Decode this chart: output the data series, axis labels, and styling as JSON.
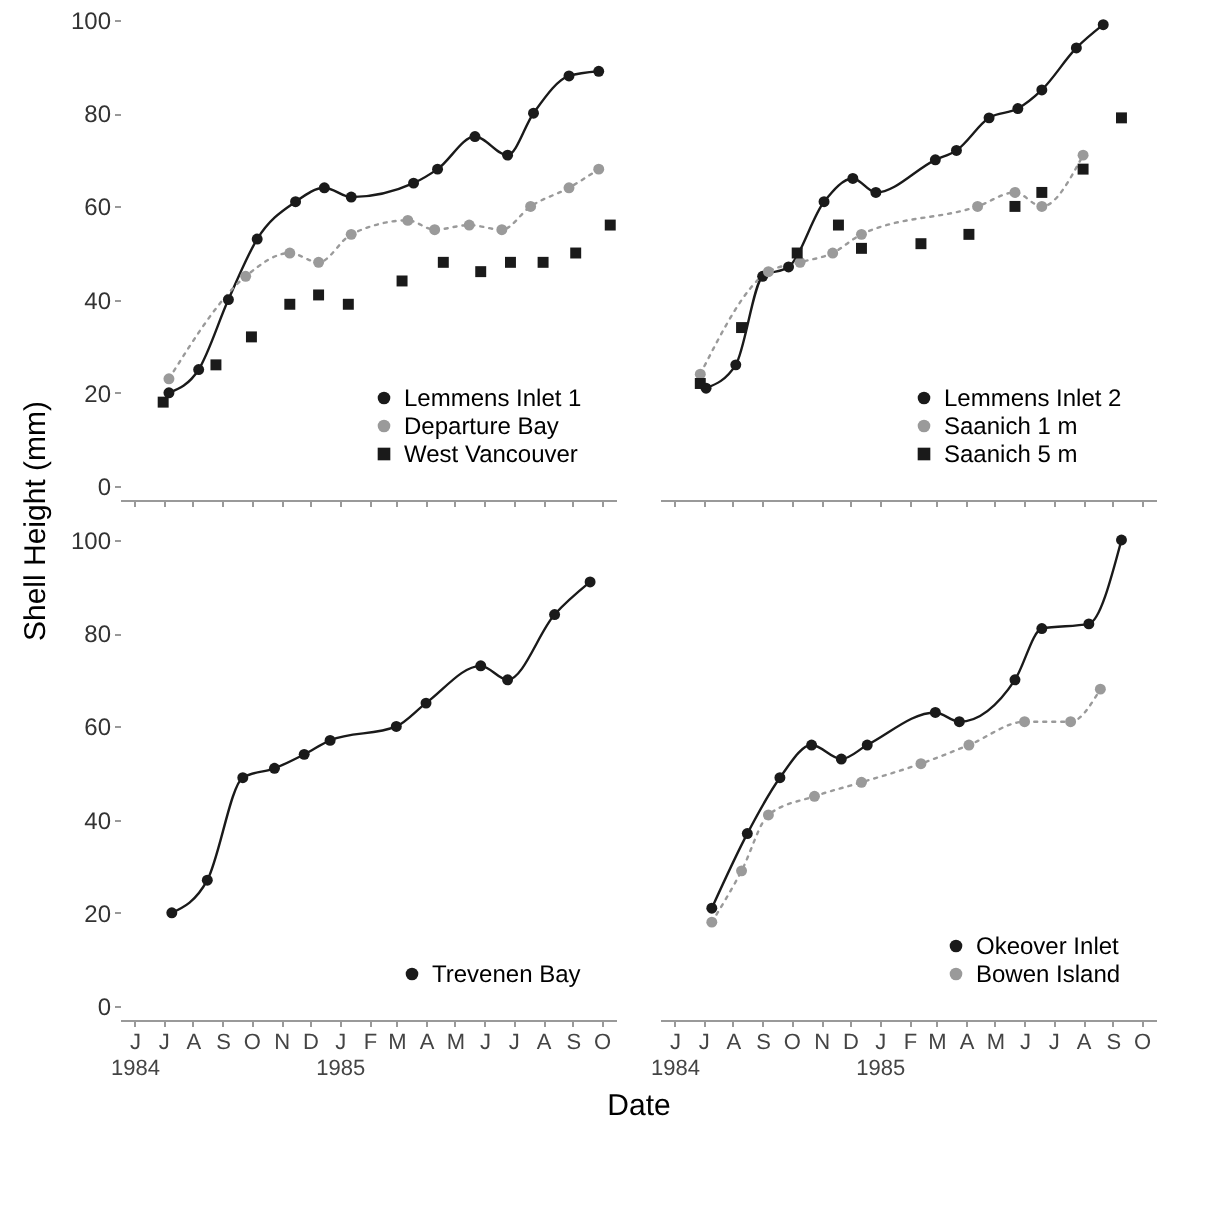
{
  "chart_data": [
    {
      "type": "line",
      "ylabel": "Shell Height (mm)",
      "xlim": [
        "1984-05-17",
        "1985-10-16"
      ],
      "ylim": [
        -3,
        100
      ],
      "xticks": [
        {
          "value": "1984-06-01",
          "label": null
        },
        {
          "value": "1984-07-01",
          "label": null
        },
        {
          "value": "1984-08-01",
          "label": null
        },
        {
          "value": "1984-09-01",
          "label": null
        },
        {
          "value": "1984-10-01",
          "label": null
        },
        {
          "value": "1984-11-01",
          "label": null
        },
        {
          "value": "1984-12-01",
          "label": null
        },
        {
          "value": "1985-01-01",
          "label": null
        },
        {
          "value": "1985-02-01",
          "label": null
        },
        {
          "value": "1985-03-01",
          "label": null
        },
        {
          "value": "1985-04-01",
          "label": null
        },
        {
          "value": "1985-05-01",
          "label": null
        },
        {
          "value": "1985-06-01",
          "label": null
        },
        {
          "value": "1985-07-01",
          "label": null
        },
        {
          "value": "1985-08-01",
          "label": null
        },
        {
          "value": "1985-09-01",
          "label": null
        },
        {
          "value": "1985-10-01",
          "label": null
        }
      ],
      "yticks": [
        0,
        20,
        40,
        60,
        80,
        100
      ],
      "tick_labels": "y",
      "legend": "bottom right",
      "grid": false,
      "series": [
        {
          "name": "Lemmens Inlet 1",
          "color": "#1a1a1a",
          "type": "line",
          "marker": "circle",
          "line_style": "solid",
          "x": [
            "1984-07-07",
            "1984-08-07",
            "1984-09-07",
            "1984-10-07",
            "1984-11-16",
            "1984-12-16",
            "1985-01-13",
            "1985-03-19",
            "1985-04-13",
            "1985-05-22",
            "1985-06-25",
            "1985-07-22",
            "1985-08-28",
            "1985-09-28"
          ],
          "values": [
            20,
            25,
            40,
            53,
            61,
            64,
            62,
            65,
            68,
            75,
            71,
            80,
            88,
            89
          ]
        },
        {
          "name": "Departure Bay",
          "color": "#9a9a9a",
          "type": "line",
          "marker": "circle",
          "line_style": "dotted",
          "x": [
            "1984-07-07",
            "1984-09-25",
            "1984-11-10",
            "1984-12-10",
            "1985-01-13",
            "1985-03-13",
            "1985-04-10",
            "1985-05-16",
            "1985-06-19",
            "1985-07-19",
            "1985-08-28",
            "1985-09-28"
          ],
          "values": [
            23,
            45,
            50,
            48,
            54,
            57,
            55,
            56,
            55,
            60,
            64,
            68
          ]
        },
        {
          "name": "West Vancouver",
          "color": "#1a1a1a",
          "type": "scatter",
          "marker": "square",
          "x": [
            "1984-07-01",
            "1984-08-25",
            "1984-10-01",
            "1984-11-10",
            "1984-12-10",
            "1985-01-10",
            "1985-03-07",
            "1985-04-19",
            "1985-05-28",
            "1985-06-28",
            "1985-08-01",
            "1985-09-04",
            "1985-10-10"
          ],
          "values": [
            18,
            26,
            32,
            39,
            41,
            39,
            44,
            48,
            46,
            48,
            48,
            50,
            56
          ]
        }
      ]
    },
    {
      "type": "line",
      "xlim": [
        "1984-05-17",
        "1985-10-16"
      ],
      "ylim": [
        -3,
        100
      ],
      "xticks": [
        {
          "value": "1984-06-01",
          "label": null
        },
        {
          "value": "1984-07-01",
          "label": null
        },
        {
          "value": "1984-08-01",
          "label": null
        },
        {
          "value": "1984-09-01",
          "label": null
        },
        {
          "value": "1984-10-01",
          "label": null
        },
        {
          "value": "1984-11-01",
          "label": null
        },
        {
          "value": "1984-12-01",
          "label": null
        },
        {
          "value": "1985-01-01",
          "label": null
        },
        {
          "value": "1985-02-01",
          "label": null
        },
        {
          "value": "1985-03-01",
          "label": null
        },
        {
          "value": "1985-04-01",
          "label": null
        },
        {
          "value": "1985-05-01",
          "label": null
        },
        {
          "value": "1985-06-01",
          "label": null
        },
        {
          "value": "1985-07-01",
          "label": null
        },
        {
          "value": "1985-08-01",
          "label": null
        },
        {
          "value": "1985-09-01",
          "label": null
        },
        {
          "value": "1985-10-01",
          "label": null
        }
      ],
      "yticks": [
        0,
        20,
        40,
        60,
        80,
        100
      ],
      "tick_labels": false,
      "legend": "bottom right",
      "grid": false,
      "series": [
        {
          "name": "Lemmens Inlet 2",
          "color": "#1a1a1a",
          "type": "line",
          "marker": "circle",
          "line_style": "solid",
          "x": [
            "1984-07-04",
            "1984-08-04",
            "1984-09-01",
            "1984-09-28",
            "1984-11-04",
            "1984-12-04",
            "1984-12-28",
            "1985-02-28",
            "1985-03-22",
            "1985-04-25",
            "1985-05-25",
            "1985-06-19",
            "1985-07-25",
            "1985-08-22"
          ],
          "values": [
            21,
            26,
            45,
            47,
            61,
            66,
            63,
            70,
            72,
            79,
            81,
            85,
            94,
            99
          ]
        },
        {
          "name": "Saanich 1 m",
          "color": "#9a9a9a",
          "type": "line",
          "marker": "circle",
          "line_style": "dotted",
          "x": [
            "1984-06-28",
            "1984-09-07",
            "1984-10-10",
            "1984-11-13",
            "1984-12-13",
            "1985-04-13",
            "1985-05-22",
            "1985-06-19",
            "1985-08-01"
          ],
          "values": [
            24,
            46,
            48,
            50,
            54,
            60,
            63,
            60,
            71
          ]
        },
        {
          "name": "Saanich 5 m",
          "color": "#1a1a1a",
          "type": "scatter",
          "marker": "square",
          "x": [
            "1984-06-28",
            "1984-08-10",
            "1984-10-07",
            "1984-11-19",
            "1984-12-13",
            "1985-02-13",
            "1985-04-04",
            "1985-05-22",
            "1985-06-19",
            "1985-08-01",
            "1985-09-10"
          ],
          "values": [
            22,
            34,
            50,
            56,
            51,
            52,
            54,
            60,
            63,
            68,
            79
          ]
        }
      ]
    },
    {
      "type": "line",
      "xlabel": "Date",
      "xlim": [
        "1984-05-17",
        "1985-10-16"
      ],
      "ylim": [
        -3,
        100
      ],
      "xticks": [
        {
          "value": "1984-06-01",
          "label": "J\n1984"
        },
        {
          "value": "1984-07-01",
          "label": "J"
        },
        {
          "value": "1984-08-01",
          "label": "A"
        },
        {
          "value": "1984-09-01",
          "label": "S"
        },
        {
          "value": "1984-10-01",
          "label": "O"
        },
        {
          "value": "1984-11-01",
          "label": "N"
        },
        {
          "value": "1984-12-01",
          "label": "D"
        },
        {
          "value": "1985-01-01",
          "label": "J\n1985"
        },
        {
          "value": "1985-02-01",
          "label": "F"
        },
        {
          "value": "1985-03-01",
          "label": "M"
        },
        {
          "value": "1985-04-01",
          "label": "A"
        },
        {
          "value": "1985-05-01",
          "label": "M"
        },
        {
          "value": "1985-06-01",
          "label": "J"
        },
        {
          "value": "1985-07-01",
          "label": "J"
        },
        {
          "value": "1985-08-01",
          "label": "A"
        },
        {
          "value": "1985-09-01",
          "label": "S"
        },
        {
          "value": "1985-10-01",
          "label": "O"
        }
      ],
      "yticks": [
        0,
        20,
        40,
        60,
        80,
        100
      ],
      "legend": "bottom right",
      "grid": false,
      "series": [
        {
          "name": "Trevenen Bay",
          "color": "#1a1a1a",
          "type": "line",
          "marker": "circle",
          "line_style": "solid",
          "x": [
            "1984-07-10",
            "1984-08-16",
            "1984-09-22",
            "1984-10-25",
            "1984-11-25",
            "1984-12-22",
            "1985-03-01",
            "1985-04-01",
            "1985-05-28",
            "1985-06-25",
            "1985-08-13",
            "1985-09-19"
          ],
          "values": [
            20,
            27,
            49,
            51,
            54,
            57,
            60,
            65,
            73,
            70,
            84,
            91
          ]
        }
      ]
    },
    {
      "type": "line",
      "xlim": [
        "1984-05-17",
        "1985-10-16"
      ],
      "ylim": [
        -3,
        100
      ],
      "xticks": [
        {
          "value": "1984-06-01",
          "label": "J\n1984"
        },
        {
          "value": "1984-07-01",
          "label": "J"
        },
        {
          "value": "1984-08-01",
          "label": "A"
        },
        {
          "value": "1984-09-01",
          "label": "S"
        },
        {
          "value": "1984-10-01",
          "label": "O"
        },
        {
          "value": "1984-11-01",
          "label": "N"
        },
        {
          "value": "1984-12-01",
          "label": "D"
        },
        {
          "value": "1985-01-01",
          "label": "J\n1985"
        },
        {
          "value": "1985-02-01",
          "label": "F"
        },
        {
          "value": "1985-03-01",
          "label": "M"
        },
        {
          "value": "1985-04-01",
          "label": "A"
        },
        {
          "value": "1985-05-01",
          "label": "M"
        },
        {
          "value": "1985-06-01",
          "label": "J"
        },
        {
          "value": "1985-07-01",
          "label": "J"
        },
        {
          "value": "1985-08-01",
          "label": "A"
        },
        {
          "value": "1985-09-01",
          "label": "S"
        },
        {
          "value": "1985-10-01",
          "label": "O"
        }
      ],
      "yticks": [
        0,
        20,
        40,
        60,
        80,
        100
      ],
      "tick_labels": "x",
      "legend": "bottom right",
      "grid": false,
      "series": [
        {
          "name": "Okeover Inlet",
          "color": "#1a1a1a",
          "type": "line",
          "marker": "circle",
          "line_style": "solid",
          "x": [
            "1984-07-10",
            "1984-08-16",
            "1984-09-19",
            "1984-10-22",
            "1984-11-22",
            "1984-12-19",
            "1985-02-28",
            "1985-03-25",
            "1985-05-22",
            "1985-06-19",
            "1985-08-07",
            "1985-09-10"
          ],
          "values": [
            21,
            37,
            49,
            56,
            53,
            56,
            63,
            61,
            70,
            81,
            82,
            100
          ]
        },
        {
          "name": "Bowen Island",
          "color": "#9a9a9a",
          "type": "line",
          "marker": "circle",
          "line_style": "dotted",
          "x": [
            "1984-07-10",
            "1984-08-10",
            "1984-09-07",
            "1984-10-25",
            "1984-12-13",
            "1985-02-13",
            "1985-04-04",
            "1985-06-01",
            "1985-07-19",
            "1985-08-19"
          ],
          "values": [
            18,
            29,
            41,
            45,
            48,
            52,
            56,
            61,
            61,
            68
          ]
        }
      ]
    }
  ]
}
